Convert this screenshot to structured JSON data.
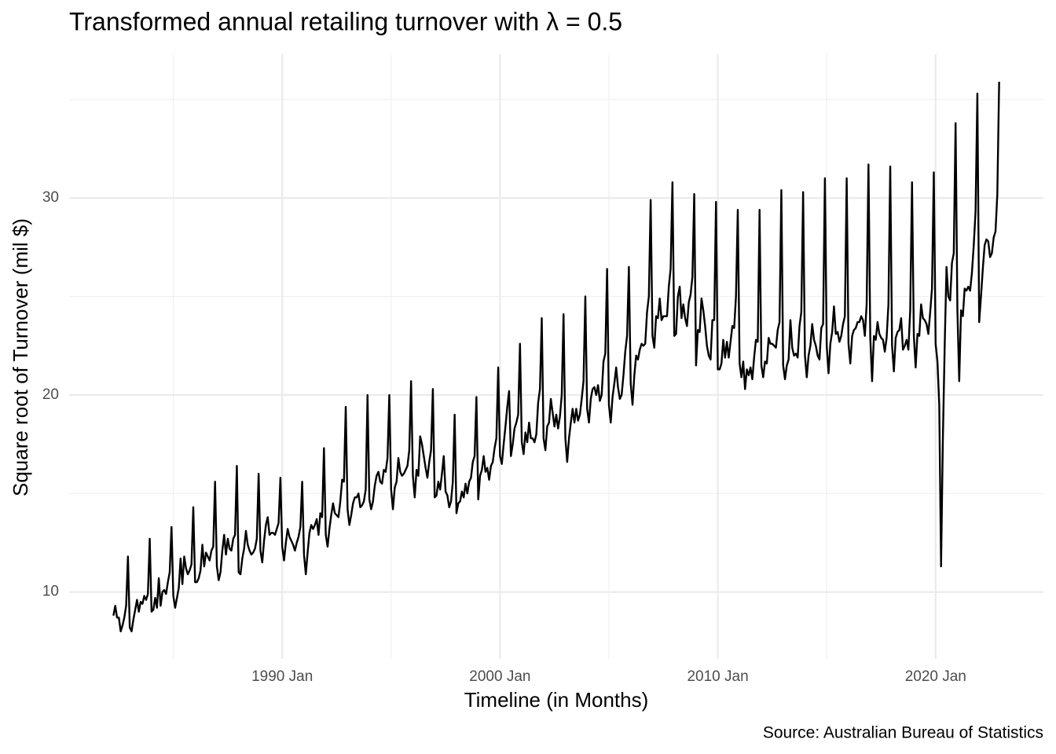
{
  "chart_data": {
    "type": "line",
    "title": "Transformed annual retailing turnover with λ = 0.5",
    "x_label": "Timeline (in Months)",
    "y_label": "Square root of Turnover (mil $)",
    "caption": "Source: Australian Bureau of Statistics",
    "color": "#000000",
    "grid": true,
    "ylim": [
      6.6,
      37.3
    ],
    "yticks": [
      10,
      20,
      30
    ],
    "y_minor_grid": [
      15,
      25,
      35
    ],
    "xticks": [
      "1990 Jan",
      "2000 Jan",
      "2010 Jan",
      "2020 Jan"
    ],
    "x_minor_grid": [
      "1985 Jan",
      "1995 Jan",
      "2005 Jan",
      "2015 Jan"
    ],
    "x": [
      "1982 Apr",
      "1982 May",
      "1982 Jun",
      "1982 Jul",
      "1982 Aug",
      "1982 Sep",
      "1982 Oct",
      "1982 Nov",
      "1982 Dec",
      "1983 Jan",
      "1983 Feb",
      "1983 Mar",
      "1983 Apr",
      "1983 May",
      "1983 Jun",
      "1983 Jul",
      "1983 Aug",
      "1983 Sep",
      "1983 Oct",
      "1983 Nov",
      "1983 Dec",
      "1984 Jan",
      "1984 Feb",
      "1984 Mar",
      "1984 Apr",
      "1984 May",
      "1984 Jun",
      "1984 Jul",
      "1984 Aug",
      "1984 Sep",
      "1984 Oct",
      "1984 Nov",
      "1984 Dec",
      "1985 Jan",
      "1985 Feb",
      "1985 Mar",
      "1985 Apr",
      "1985 May",
      "1985 Jun",
      "1985 Jul",
      "1985 Aug",
      "1985 Sep",
      "1985 Oct",
      "1985 Nov",
      "1985 Dec",
      "1986 Jan",
      "1986 Feb",
      "1986 Mar",
      "1986 Apr",
      "1986 May",
      "1986 Jun",
      "1986 Jul",
      "1986 Aug",
      "1986 Sep",
      "1986 Oct",
      "1986 Nov",
      "1986 Dec",
      "1987 Jan",
      "1987 Feb",
      "1987 Mar",
      "1987 Apr",
      "1987 May",
      "1987 Jun",
      "1987 Jul",
      "1987 Aug",
      "1987 Sep",
      "1987 Oct",
      "1987 Nov",
      "1987 Dec",
      "1988 Jan",
      "1988 Feb",
      "1988 Mar",
      "1988 Apr",
      "1988 May",
      "1988 Jun",
      "1988 Jul",
      "1988 Aug",
      "1988 Sep",
      "1988 Oct",
      "1988 Nov",
      "1988 Dec",
      "1989 Jan",
      "1989 Feb",
      "1989 Mar",
      "1989 Apr",
      "1989 May",
      "1989 Jun",
      "1989 Jul",
      "1989 Aug",
      "1989 Sep",
      "1989 Oct",
      "1989 Nov",
      "1989 Dec",
      "1990 Jan",
      "1990 Feb",
      "1990 Mar",
      "1990 Apr",
      "1990 May",
      "1990 Jun",
      "1990 Jul",
      "1990 Aug",
      "1990 Sep",
      "1990 Oct",
      "1990 Nov",
      "1990 Dec",
      "1991 Jan",
      "1991 Feb",
      "1991 Mar",
      "1991 Apr",
      "1991 May",
      "1991 Jun",
      "1991 Jul",
      "1991 Aug",
      "1991 Sep",
      "1991 Oct",
      "1991 Nov",
      "1991 Dec",
      "1992 Jan",
      "1992 Feb",
      "1992 Mar",
      "1992 Apr",
      "1992 May",
      "1992 Jun",
      "1992 Jul",
      "1992 Aug",
      "1992 Sep",
      "1992 Oct",
      "1992 Nov",
      "1992 Dec",
      "1993 Jan",
      "1993 Feb",
      "1993 Mar",
      "1993 Apr",
      "1993 May",
      "1993 Jun",
      "1993 Jul",
      "1993 Aug",
      "1993 Sep",
      "1993 Oct",
      "1993 Nov",
      "1993 Dec",
      "1994 Jan",
      "1994 Feb",
      "1994 Mar",
      "1994 Apr",
      "1994 May",
      "1994 Jun",
      "1994 Jul",
      "1994 Aug",
      "1994 Sep",
      "1994 Oct",
      "1994 Nov",
      "1994 Dec",
      "1995 Jan",
      "1995 Feb",
      "1995 Mar",
      "1995 Apr",
      "1995 May",
      "1995 Jun",
      "1995 Jul",
      "1995 Aug",
      "1995 Sep",
      "1995 Oct",
      "1995 Nov",
      "1995 Dec",
      "1996 Jan",
      "1996 Feb",
      "1996 Mar",
      "1996 Apr",
      "1996 May",
      "1996 Jun",
      "1996 Jul",
      "1996 Aug",
      "1996 Sep",
      "1996 Oct",
      "1996 Nov",
      "1996 Dec",
      "1997 Jan",
      "1997 Feb",
      "1997 Mar",
      "1997 Apr",
      "1997 May",
      "1997 Jun",
      "1997 Jul",
      "1997 Aug",
      "1997 Sep",
      "1997 Oct",
      "1997 Nov",
      "1997 Dec",
      "1998 Jan",
      "1998 Feb",
      "1998 Mar",
      "1998 Apr",
      "1998 May",
      "1998 Jun",
      "1998 Jul",
      "1998 Aug",
      "1998 Sep",
      "1998 Oct",
      "1998 Nov",
      "1998 Dec",
      "1999 Jan",
      "1999 Feb",
      "1999 Mar",
      "1999 Apr",
      "1999 May",
      "1999 Jun",
      "1999 Jul",
      "1999 Aug",
      "1999 Sep",
      "1999 Oct",
      "1999 Nov",
      "1999 Dec",
      "2000 Jan",
      "2000 Feb",
      "2000 Mar",
      "2000 Apr",
      "2000 May",
      "2000 Jun",
      "2000 Jul",
      "2000 Aug",
      "2000 Sep",
      "2000 Oct",
      "2000 Nov",
      "2000 Dec",
      "2001 Jan",
      "2001 Feb",
      "2001 Mar",
      "2001 Apr",
      "2001 May",
      "2001 Jun",
      "2001 Jul",
      "2001 Aug",
      "2001 Sep",
      "2001 Oct",
      "2001 Nov",
      "2001 Dec",
      "2002 Jan",
      "2002 Feb",
      "2002 Mar",
      "2002 Apr",
      "2002 May",
      "2002 Jun",
      "2002 Jul",
      "2002 Aug",
      "2002 Sep",
      "2002 Oct",
      "2002 Nov",
      "2002 Dec",
      "2003 Jan",
      "2003 Feb",
      "2003 Mar",
      "2003 Apr",
      "2003 May",
      "2003 Jun",
      "2003 Jul",
      "2003 Aug",
      "2003 Sep",
      "2003 Oct",
      "2003 Nov",
      "2003 Dec",
      "2004 Jan",
      "2004 Feb",
      "2004 Mar",
      "2004 Apr",
      "2004 May",
      "2004 Jun",
      "2004 Jul",
      "2004 Aug",
      "2004 Sep",
      "2004 Oct",
      "2004 Nov",
      "2004 Dec",
      "2005 Jan",
      "2005 Feb",
      "2005 Mar",
      "2005 Apr",
      "2005 May",
      "2005 Jun",
      "2005 Jul",
      "2005 Aug",
      "2005 Sep",
      "2005 Oct",
      "2005 Nov",
      "2005 Dec",
      "2006 Jan",
      "2006 Feb",
      "2006 Mar",
      "2006 Apr",
      "2006 May",
      "2006 Jun",
      "2006 Jul",
      "2006 Aug",
      "2006 Sep",
      "2006 Oct",
      "2006 Nov",
      "2006 Dec",
      "2007 Jan",
      "2007 Feb",
      "2007 Mar",
      "2007 Apr",
      "2007 May",
      "2007 Jun",
      "2007 Jul",
      "2007 Aug",
      "2007 Sep",
      "2007 Oct",
      "2007 Nov",
      "2007 Dec",
      "2008 Jan",
      "2008 Feb",
      "2008 Mar",
      "2008 Apr",
      "2008 May",
      "2008 Jun",
      "2008 Jul",
      "2008 Aug",
      "2008 Sep",
      "2008 Oct",
      "2008 Nov",
      "2008 Dec",
      "2009 Jan",
      "2009 Feb",
      "2009 Mar",
      "2009 Apr",
      "2009 May",
      "2009 Jun",
      "2009 Jul",
      "2009 Aug",
      "2009 Sep",
      "2009 Oct",
      "2009 Nov",
      "2009 Dec",
      "2010 Jan",
      "2010 Feb",
      "2010 Mar",
      "2010 Apr",
      "2010 May",
      "2010 Jun",
      "2010 Jul",
      "2010 Aug",
      "2010 Sep",
      "2010 Oct",
      "2010 Nov",
      "2010 Dec",
      "2011 Jan",
      "2011 Feb",
      "2011 Mar",
      "2011 Apr",
      "2011 May",
      "2011 Jun",
      "2011 Jul",
      "2011 Aug",
      "2011 Sep",
      "2011 Oct",
      "2011 Nov",
      "2011 Dec",
      "2012 Jan",
      "2012 Feb",
      "2012 Mar",
      "2012 Apr",
      "2012 May",
      "2012 Jun",
      "2012 Jul",
      "2012 Aug",
      "2012 Sep",
      "2012 Oct",
      "2012 Nov",
      "2012 Dec",
      "2013 Jan",
      "2013 Feb",
      "2013 Mar",
      "2013 Apr",
      "2013 May",
      "2013 Jun",
      "2013 Jul",
      "2013 Aug",
      "2013 Sep",
      "2013 Oct",
      "2013 Nov",
      "2013 Dec",
      "2014 Jan",
      "2014 Feb",
      "2014 Mar",
      "2014 Apr",
      "2014 May",
      "2014 Jun",
      "2014 Jul",
      "2014 Aug",
      "2014 Sep",
      "2014 Oct",
      "2014 Nov",
      "2014 Dec",
      "2015 Jan",
      "2015 Feb",
      "2015 Mar",
      "2015 Apr",
      "2015 May",
      "2015 Jun",
      "2015 Jul",
      "2015 Aug",
      "2015 Sep",
      "2015 Oct",
      "2015 Nov",
      "2015 Dec",
      "2016 Jan",
      "2016 Feb",
      "2016 Mar",
      "2016 Apr",
      "2016 May",
      "2016 Jun",
      "2016 Jul",
      "2016 Aug",
      "2016 Sep",
      "2016 Oct",
      "2016 Nov",
      "2016 Dec",
      "2017 Jan",
      "2017 Feb",
      "2017 Mar",
      "2017 Apr",
      "2017 May",
      "2017 Jun",
      "2017 Jul",
      "2017 Aug",
      "2017 Sep",
      "2017 Oct",
      "2017 Nov",
      "2017 Dec",
      "2018 Jan",
      "2018 Feb",
      "2018 Mar",
      "2018 Apr",
      "2018 May",
      "2018 Jun",
      "2018 Jul",
      "2018 Aug",
      "2018 Sep",
      "2018 Oct",
      "2018 Nov",
      "2018 Dec",
      "2019 Jan",
      "2019 Feb",
      "2019 Mar",
      "2019 Apr",
      "2019 May",
      "2019 Jun",
      "2019 Jul",
      "2019 Aug",
      "2019 Sep",
      "2019 Oct",
      "2019 Nov",
      "2019 Dec",
      "2020 Jan",
      "2020 Feb",
      "2020 Mar",
      "2020 Apr",
      "2020 May",
      "2020 Jun",
      "2020 Jul",
      "2020 Aug",
      "2020 Sep",
      "2020 Oct",
      "2020 Nov",
      "2020 Dec",
      "2021 Jan",
      "2021 Feb",
      "2021 Mar",
      "2021 Apr",
      "2021 May",
      "2021 Jun",
      "2021 Jul",
      "2021 Aug",
      "2021 Sep",
      "2021 Oct",
      "2021 Nov",
      "2021 Dec",
      "2022 Jan",
      "2022 Feb",
      "2022 Mar",
      "2022 Apr",
      "2022 May",
      "2022 Jun",
      "2022 Jul",
      "2022 Aug",
      "2022 Sep",
      "2022 Oct",
      "2022 Nov",
      "2022 Dec"
    ],
    "values": [
      8.8,
      9.3,
      8.7,
      8.7,
      8.0,
      8.3,
      8.7,
      9.3,
      11.8,
      8.2,
      8.0,
      8.6,
      9.1,
      9.6,
      9.0,
      9.5,
      9.4,
      9.8,
      9.6,
      9.9,
      12.7,
      9.0,
      9.1,
      9.7,
      9.2,
      10.7,
      9.3,
      10.0,
      10.1,
      9.9,
      10.5,
      11.0,
      13.3,
      9.8,
      9.2,
      9.7,
      10.2,
      11.7,
      10.4,
      11.8,
      11.2,
      10.9,
      11.1,
      11.4,
      14.3,
      10.5,
      10.5,
      10.7,
      11.1,
      12.4,
      11.3,
      12.0,
      11.8,
      11.6,
      12.1,
      12.3,
      15.6,
      11.3,
      10.6,
      11.0,
      12.1,
      12.9,
      11.9,
      12.7,
      12.2,
      12.1,
      12.7,
      12.9,
      16.4,
      11.0,
      10.9,
      11.7,
      12.2,
      13.1,
      12.4,
      12.1,
      11.9,
      12.0,
      12.2,
      12.7,
      16.0,
      12.1,
      11.5,
      12.6,
      13.4,
      13.8,
      12.9,
      13.0,
      13.0,
      12.9,
      13.2,
      13.5,
      15.8,
      12.3,
      11.6,
      12.5,
      13.2,
      12.8,
      12.6,
      12.4,
      12.1,
      12.5,
      12.8,
      13.3,
      15.6,
      11.9,
      10.9,
      12.0,
      13.0,
      13.4,
      13.2,
      13.4,
      13.7,
      12.9,
      14.0,
      13.8,
      17.3,
      12.9,
      12.3,
      13.2,
      13.9,
      14.5,
      14.0,
      13.9,
      13.8,
      14.6,
      15.7,
      15.6,
      19.4,
      14.2,
      13.4,
      13.9,
      14.5,
      14.8,
      14.8,
      15.0,
      14.3,
      14.4,
      14.6,
      15.2,
      20.0,
      14.7,
      14.2,
      14.6,
      15.4,
      15.9,
      16.1,
      15.6,
      15.5,
      16.2,
      16.1,
      16.8,
      20.0,
      15.2,
      14.2,
      15.3,
      15.6,
      16.8,
      16.1,
      15.9,
      16.0,
      16.2,
      16.4,
      17.2,
      20.7,
      15.9,
      14.8,
      16.2,
      15.9,
      17.9,
      17.5,
      16.9,
      16.3,
      15.8,
      16.6,
      17.2,
      20.3,
      14.8,
      14.9,
      15.6,
      15.2,
      16.0,
      16.9,
      15.1,
      14.9,
      14.3,
      14.6,
      15.6,
      19.0,
      14.0,
      14.5,
      14.6,
      15.1,
      14.8,
      15.5,
      15.0,
      15.6,
      15.8,
      16.6,
      16.9,
      19.9,
      14.7,
      15.9,
      16.2,
      16.9,
      16.1,
      16.3,
      15.7,
      16.4,
      16.6,
      17.3,
      17.8,
      21.4,
      16.9,
      16.5,
      17.5,
      18.4,
      19.4,
      20.2,
      16.9,
      17.5,
      18.3,
      18.6,
      19.0,
      22.6,
      17.6,
      17.0,
      18.1,
      17.6,
      18.6,
      17.8,
      17.8,
      17.6,
      18.0,
      19.6,
      20.3,
      23.9,
      17.8,
      17.2,
      18.4,
      18.6,
      19.8,
      19.1,
      18.4,
      19.0,
      18.3,
      18.9,
      20.0,
      24.1,
      17.8,
      16.6,
      17.8,
      18.6,
      19.3,
      18.6,
      19.3,
      18.7,
      19.0,
      19.8,
      20.7,
      25.0,
      19.3,
      18.6,
      19.8,
      20.3,
      20.4,
      20.0,
      20.5,
      19.7,
      20.0,
      21.7,
      22.1,
      26.4,
      19.5,
      18.6,
      19.9,
      20.6,
      21.4,
      20.4,
      19.8,
      20.0,
      21.0,
      22.2,
      23.0,
      26.5,
      20.6,
      19.5,
      21.0,
      22.0,
      21.8,
      22.3,
      22.6,
      22.5,
      22.6,
      24.2,
      25.0,
      29.9,
      23.0,
      22.4,
      24.0,
      23.9,
      24.9,
      23.8,
      24.0,
      24.0,
      24.0,
      25.5,
      26.4,
      30.8,
      23.0,
      23.1,
      25.0,
      25.5,
      23.9,
      24.6,
      23.9,
      23.5,
      24.7,
      25.1,
      26.0,
      30.2,
      21.5,
      23.3,
      23.2,
      24.9,
      24.3,
      23.5,
      22.5,
      22.0,
      21.8,
      23.8,
      23.8,
      29.8,
      21.3,
      21.3,
      21.6,
      22.8,
      21.9,
      22.7,
      21.9,
      22.7,
      23.5,
      23.4,
      25.0,
      29.4,
      21.6,
      20.9,
      21.7,
      20.3,
      21.3,
      21.0,
      21.4,
      20.8,
      21.9,
      22.8,
      22.7,
      29.4,
      21.5,
      20.9,
      21.7,
      21.6,
      22.9,
      22.6,
      22.6,
      22.5,
      22.4,
      23.3,
      23.7,
      30.4,
      21.5,
      20.8,
      21.5,
      21.8,
      23.8,
      22.4,
      22.0,
      22.1,
      21.9,
      23.5,
      24.2,
      30.3,
      22.0,
      20.9,
      22.0,
      22.5,
      23.6,
      22.8,
      22.5,
      22.0,
      21.8,
      23.4,
      23.6,
      31.0,
      22.5,
      21.1,
      22.6,
      23.2,
      24.5,
      23.1,
      23.2,
      22.7,
      23.0,
      23.6,
      24.0,
      31.0,
      22.6,
      21.6,
      23.0,
      23.3,
      23.4,
      23.7,
      23.7,
      24.0,
      23.8,
      23.0,
      24.6,
      31.7,
      22.9,
      20.7,
      23.0,
      22.8,
      23.7,
      23.1,
      22.9,
      22.8,
      22.2,
      22.9,
      24.6,
      31.6,
      22.5,
      21.2,
      22.9,
      23.2,
      23.3,
      23.9,
      22.3,
      22.5,
      22.8,
      22.3,
      24.3,
      30.8,
      23.0,
      21.4,
      23.1,
      23.0,
      24.6,
      23.9,
      23.8,
      23.6,
      23.1,
      24.2,
      25.4,
      31.3,
      22.6,
      21.7,
      19.5,
      11.3,
      17.8,
      22.5,
      26.5,
      25.0,
      24.8,
      26.7,
      27.2,
      33.8,
      24.3,
      20.7,
      24.3,
      24.0,
      25.4,
      25.3,
      25.5,
      25.3,
      26.2,
      27.6,
      29.3,
      35.3,
      23.7,
      25.0,
      26.4,
      27.6,
      27.9,
      27.8,
      27.0,
      27.2,
      28.0,
      28.3,
      30.2,
      35.9
    ]
  }
}
